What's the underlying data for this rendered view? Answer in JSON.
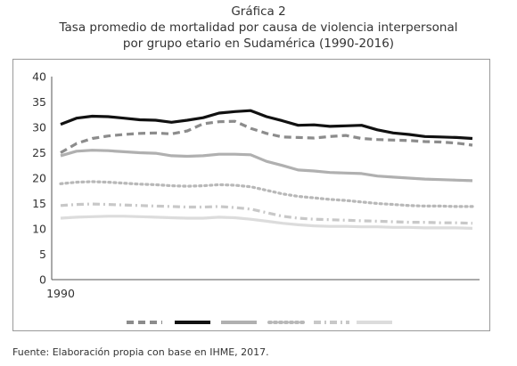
{
  "figure": {
    "label": "Gráfica 2",
    "title_line1": "Tasa promedio de mortalidad por causa de violencia interpersonal",
    "title_line2": "por grupo etario en Sudamérica (1990-2016)"
  },
  "source": "Fuente: Elaboración propia con base en IHME, 2017.",
  "chart_data": {
    "type": "line",
    "title": "Tasa promedio de mortalidad por causa de violencia interpersonal por grupo etario en Sudamérica (1990-2016)",
    "xlabel": "",
    "ylabel": "",
    "x": [
      1990,
      1991,
      1992,
      1993,
      1994,
      1995,
      1996,
      1997,
      1998,
      1999,
      2000,
      2001,
      2002,
      2003,
      2004,
      2005,
      2006,
      2007,
      2008,
      2009,
      2010,
      2011,
      2012,
      2013,
      2014,
      2015,
      2016
    ],
    "x_tick_labels": [
      "1990"
    ],
    "ylim": [
      0,
      40
    ],
    "y_ticks": [
      0,
      5,
      10,
      15,
      20,
      25,
      30,
      35,
      40
    ],
    "grid": false,
    "legend": "bottom",
    "series": [
      {
        "style": "dashed",
        "color": "#8c8c8c",
        "values": [
          25.0,
          26.8,
          27.8,
          28.3,
          28.6,
          28.8,
          28.9,
          28.7,
          29.3,
          30.7,
          31.1,
          31.2,
          29.8,
          28.8,
          28.1,
          28.0,
          27.9,
          28.2,
          28.4,
          27.8,
          27.6,
          27.5,
          27.4,
          27.2,
          27.1,
          26.9,
          26.5
        ]
      },
      {
        "style": "solid",
        "color": "#111111",
        "values": [
          30.6,
          31.8,
          32.2,
          32.1,
          31.8,
          31.5,
          31.4,
          31.0,
          31.4,
          31.9,
          32.8,
          33.1,
          33.3,
          32.1,
          31.3,
          30.4,
          30.5,
          30.2,
          30.3,
          30.4,
          29.5,
          28.9,
          28.6,
          28.2,
          28.1,
          28.0,
          27.8
        ]
      },
      {
        "style": "solid",
        "color": "#b0b0b0",
        "values": [
          24.4,
          25.3,
          25.5,
          25.4,
          25.2,
          25.0,
          24.9,
          24.4,
          24.3,
          24.4,
          24.7,
          24.7,
          24.6,
          23.3,
          22.5,
          21.6,
          21.4,
          21.1,
          21.0,
          20.9,
          20.4,
          20.2,
          20.0,
          19.8,
          19.7,
          19.6,
          19.5
        ]
      },
      {
        "style": "dotted",
        "color": "#b8b8b8",
        "values": [
          18.9,
          19.2,
          19.3,
          19.2,
          19.0,
          18.8,
          18.7,
          18.5,
          18.4,
          18.5,
          18.7,
          18.6,
          18.3,
          17.6,
          16.9,
          16.4,
          16.1,
          15.8,
          15.6,
          15.3,
          15.0,
          14.8,
          14.6,
          14.5,
          14.5,
          14.4,
          14.4
        ]
      },
      {
        "style": "dashdot",
        "color": "#c8c8c8",
        "values": [
          14.6,
          14.8,
          14.9,
          14.8,
          14.7,
          14.6,
          14.5,
          14.4,
          14.3,
          14.3,
          14.4,
          14.2,
          13.9,
          13.2,
          12.5,
          12.1,
          11.9,
          11.8,
          11.7,
          11.6,
          11.5,
          11.4,
          11.3,
          11.3,
          11.2,
          11.2,
          11.1
        ]
      },
      {
        "style": "solid",
        "color": "#dcdcdc",
        "values": [
          12.1,
          12.3,
          12.4,
          12.5,
          12.5,
          12.4,
          12.3,
          12.2,
          12.1,
          12.1,
          12.3,
          12.2,
          11.9,
          11.5,
          11.1,
          10.8,
          10.6,
          10.5,
          10.5,
          10.4,
          10.4,
          10.3,
          10.3,
          10.2,
          10.2,
          10.2,
          10.1
        ]
      }
    ]
  }
}
